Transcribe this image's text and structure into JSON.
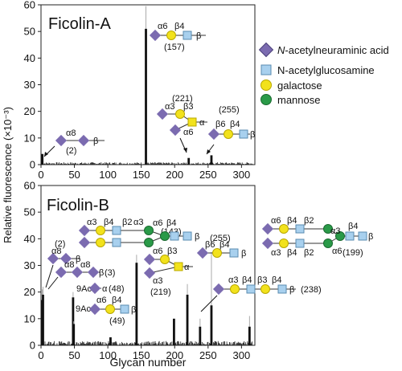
{
  "chart_data": [
    {
      "type": "bar",
      "title": "Ficolin-A",
      "xlabel": "",
      "ylabel": "Relative fluorescence (×10⁻³)",
      "xlim": [
        0,
        320
      ],
      "ylim": [
        0,
        60
      ],
      "xticks": [
        0,
        50,
        100,
        150,
        200,
        250,
        300
      ],
      "yticks": [
        0,
        10,
        20,
        30,
        40,
        50,
        60
      ],
      "peaks": [
        {
          "x": 2,
          "y": 4,
          "err": 0,
          "label": "(2)"
        },
        {
          "x": 157,
          "y": 51,
          "err": 9,
          "label": "(157)"
        },
        {
          "x": 221,
          "y": 2.5,
          "err": 0,
          "label": "(221)"
        },
        {
          "x": 255,
          "y": 3.5,
          "err": 0,
          "label": "(255)"
        }
      ],
      "annotations": [
        {
          "target": "(2)",
          "glycan": [
            "α8",
            "β"
          ]
        },
        {
          "target": "(157)",
          "glycan": [
            "α6",
            "β4",
            "β"
          ]
        },
        {
          "target": "(221)",
          "glycan": [
            "α3",
            "β3",
            "α6",
            "α"
          ]
        },
        {
          "target": "(255)",
          "glycan": [
            "β6",
            "β4",
            "β"
          ]
        }
      ]
    },
    {
      "type": "bar",
      "title": "Ficolin-B",
      "xlabel": "Glycan number",
      "ylabel": "Relative fluorescence (×10⁻³)",
      "xlim": [
        0,
        320
      ],
      "ylim": [
        0,
        60
      ],
      "xticks": [
        0,
        50,
        100,
        150,
        200,
        250,
        300
      ],
      "yticks": [
        0,
        10,
        20,
        30,
        40,
        50,
        60
      ],
      "peaks": [
        {
          "x": 2,
          "y": 17,
          "err": 4,
          "label": "(2)"
        },
        {
          "x": 3,
          "y": 19,
          "err": 3,
          "label": "(3)"
        },
        {
          "x": 48,
          "y": 18,
          "err": 2,
          "label": "(48)"
        },
        {
          "x": 49,
          "y": 8,
          "err": 1,
          "label": "(49)"
        },
        {
          "x": 104,
          "y": 3,
          "err": 0,
          "label": ""
        },
        {
          "x": 143,
          "y": 31,
          "err": 3,
          "label": "(143)"
        },
        {
          "x": 199,
          "y": 10,
          "err": 0,
          "label": "(199)"
        },
        {
          "x": 219,
          "y": 19,
          "err": 4,
          "label": "(219)"
        },
        {
          "x": 238,
          "y": 7,
          "err": 3,
          "label": "(238)"
        },
        {
          "x": 255,
          "y": 15,
          "err": 20,
          "label": "(255)"
        },
        {
          "x": 312,
          "y": 7,
          "err": 4,
          "label": ""
        }
      ],
      "annotations": [
        {
          "target": "(2)",
          "glycan": [
            "α8",
            "β"
          ]
        },
        {
          "target": "(3)",
          "glycan": [
            "α8",
            "α8",
            "β"
          ]
        },
        {
          "target": "(48)",
          "glycan": [
            "9Ac",
            "α"
          ]
        },
        {
          "target": "(49)",
          "glycan": [
            "9Ac",
            "α6",
            "β4",
            "β"
          ]
        },
        {
          "target": "(143)",
          "glycan": [
            "α3",
            "β4",
            "β2",
            "α3",
            "α6",
            "β4",
            "β"
          ]
        },
        {
          "target": "(219)",
          "glycan": [
            "α6",
            "β3",
            "α3",
            "α"
          ]
        },
        {
          "target": "(255)",
          "glycan": [
            "β6",
            "β4",
            "β"
          ]
        },
        {
          "target": "(238)",
          "glycan": [
            "α3",
            "β4",
            "β3",
            "β4",
            "β"
          ]
        },
        {
          "target": "(199)",
          "glycan": [
            "α6",
            "β4",
            "β2",
            "α3",
            "β4",
            "β",
            "α3",
            "β4",
            "β2",
            "α6"
          ]
        }
      ]
    }
  ],
  "legend": [
    {
      "symbol": "diamond",
      "color": "#7b6bb0",
      "prefix": "N",
      "label": "-acetylneuraminic acid"
    },
    {
      "symbol": "square",
      "color": "#a8d0ee",
      "prefix": "",
      "label": "N-acetylglucosamine"
    },
    {
      "symbol": "circle",
      "color": "#f2e21c",
      "prefix": "",
      "label": "galactose"
    },
    {
      "symbol": "circle",
      "color": "#2a9a48",
      "prefix": "",
      "label": "mannose"
    }
  ],
  "colors": {
    "sialic": "#7b6bb0",
    "glcnac": "#a8d0ee",
    "gal": "#f2e21c",
    "man": "#2a9a48"
  }
}
